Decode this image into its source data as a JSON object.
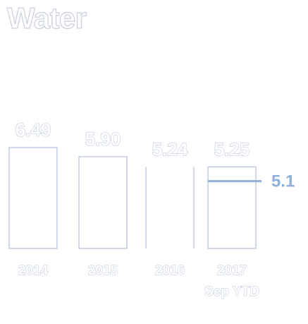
{
  "title": "Water",
  "chart_data": {
    "type": "bar",
    "categories": [
      "2014",
      "2015",
      "2016",
      "2017"
    ],
    "category_sublabels": [
      "",
      "",
      "",
      "Sep YTD"
    ],
    "values": [
      6.49,
      5.9,
      5.24,
      5.25
    ],
    "value_labels": [
      "6.49",
      "5.90",
      "5.24",
      "5.25"
    ],
    "target": {
      "value": 5.1,
      "label": "5.1",
      "color": "#8fb0d8"
    },
    "bar_outline_color": "#b8c4db",
    "xlabel": "",
    "ylabel": "",
    "ylim": [
      0,
      6.49
    ],
    "grid": false,
    "legend": "none"
  }
}
